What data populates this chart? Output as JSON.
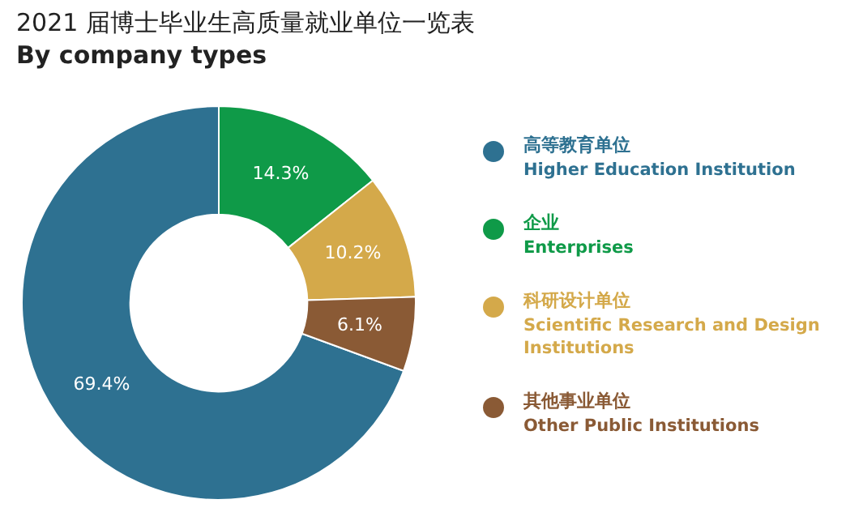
{
  "chart_data": {
    "type": "donut",
    "title": "2021 届博士毕业生高质量就业单位一览表",
    "subtitle": "By company types",
    "categories": [
      "高等教育单位\nHigher Education Institution",
      "企业\nEnterprises",
      "科研设计单位\nScientific Research and Design Institutions",
      "其他事业单位\nOther Public Institutions"
    ],
    "values": [
      69.4,
      14.3,
      10.2,
      6.1
    ],
    "colors": [
      "#2e7191",
      "#0f9a48",
      "#d4a94a",
      "#8a5a35"
    ],
    "value_labels": [
      "69.4%",
      "14.3%",
      "10.2%",
      "6.1%"
    ],
    "legend": "right"
  }
}
